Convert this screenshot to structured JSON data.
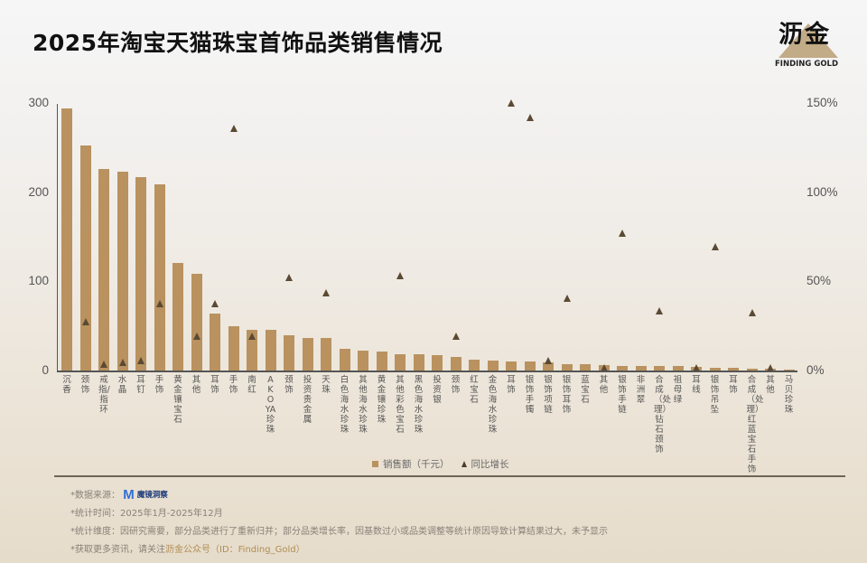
{
  "title": "2025年淘宝天猫珠宝首饰品类销售情况",
  "logo": {
    "cn": "沥金",
    "en": "FINDING GOLD"
  },
  "chart_data": {
    "type": "bar",
    "title": "2025年淘宝天猫珠宝首饰品类销售情况",
    "xlabel": "",
    "ylabel": "销售额（千元）",
    "y2label": "同比增长",
    "ylim": [
      0,
      300
    ],
    "y2lim": [
      0,
      150
    ],
    "yticks": [
      "0",
      "100",
      "200",
      "300"
    ],
    "y2ticks": [
      "0%",
      "50%",
      "100%",
      "150%"
    ],
    "grid": false,
    "legend_position": "bottom",
    "categories": [
      "沉香",
      "颈饰",
      "戒指/指环",
      "水晶",
      "耳钉",
      "手饰",
      "黄金镶宝石",
      "其他",
      "耳饰",
      "手饰",
      "南红",
      "AKOYA珍珠",
      "颈饰",
      "投资贵金属",
      "天珠",
      "白色海水珍珠",
      "其他海水珍珠",
      "黄金镶珍珠",
      "其他彩色宝石",
      "黑色海水珍珠",
      "投资银",
      "颈饰",
      "红宝石",
      "金色海水珍珠",
      "耳饰",
      "银饰手镯",
      "银饰项链",
      "银饰耳饰",
      "蓝宝石",
      "其他",
      "银饰手链",
      "非洲翠",
      "合成（处理）钻石颈饰",
      "祖母绿",
      "耳线",
      "银饰吊坠",
      "耳饰",
      "合成（处理）红蓝宝石手饰",
      "其他",
      "马贝珍珠"
    ],
    "series": [
      {
        "name": "销售额（千元）",
        "type": "bar",
        "values": [
          295,
          253,
          227,
          224,
          218,
          210,
          121,
          109,
          64,
          50,
          46,
          46,
          40,
          37,
          37,
          24,
          22,
          21,
          18,
          18,
          17,
          15,
          12,
          11,
          10,
          10,
          9,
          7,
          7,
          6,
          5,
          5,
          5,
          5,
          4,
          3,
          3,
          2,
          2,
          1
        ]
      },
      {
        "name": "同比增长",
        "type": "scatter",
        "axis": "right",
        "unit": "%",
        "values": [
          null,
          27,
          3,
          4,
          5,
          37,
          null,
          19,
          37,
          136,
          19,
          null,
          52,
          null,
          43,
          null,
          null,
          null,
          53,
          null,
          null,
          19,
          null,
          null,
          150,
          142,
          5,
          40,
          null,
          1,
          77,
          null,
          33,
          null,
          1,
          69,
          null,
          32,
          1,
          null
        ]
      }
    ]
  },
  "legend": {
    "bar_label": "销售额（千元）",
    "marker_label": "同比增长"
  },
  "notes": {
    "source_prefix": "*数据来源：",
    "source_logo_letter": "M",
    "source_logo_text": "魔镜洞察",
    "period": "*统计时间：2025年1月-2025年12月",
    "dimension": "*统计维度：因研究需要，部分品类进行了重新归并；部分品类增长率，因基数过小或品类调整等统计原因导致计算结果过大，未予显示",
    "more_prefix": "*获取更多资讯，请关注",
    "more_highlight": "沥金公众号",
    "more_suffix": "（ID：Finding_Gold）"
  },
  "colors": {
    "bar": "#b9925f",
    "marker": "#5b4a33",
    "highlight": "#b08d52"
  }
}
